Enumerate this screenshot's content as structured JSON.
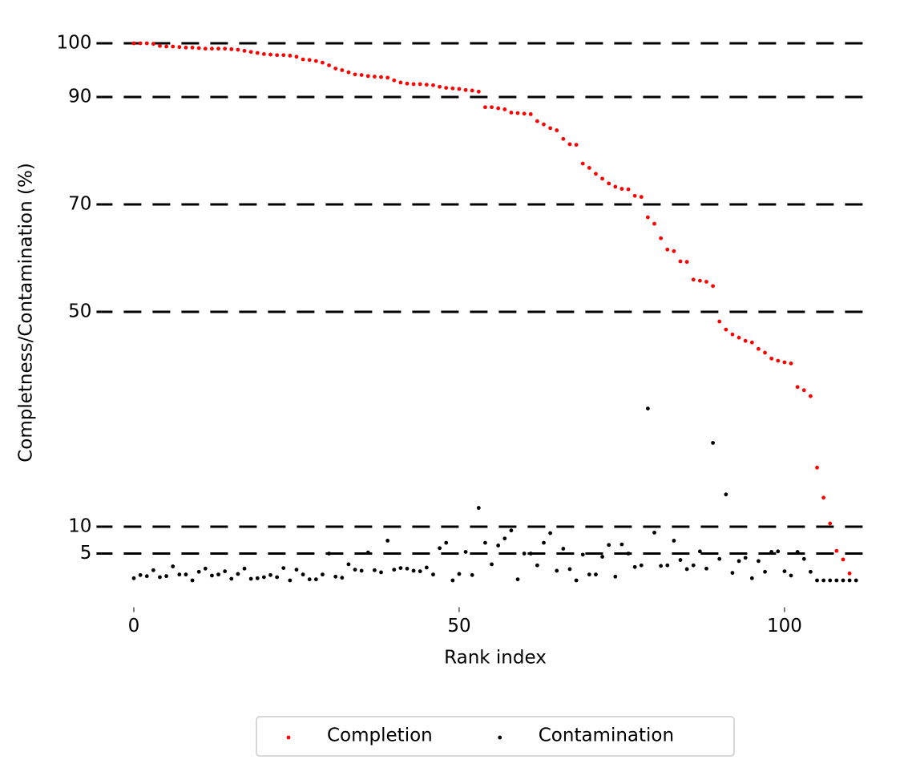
{
  "chart_data": {
    "type": "scatter",
    "xlabel": "Rank index",
    "ylabel": "Completness/Contamination (%)",
    "x": [
      0,
      1,
      2,
      3,
      4,
      5,
      6,
      7,
      8,
      9,
      10,
      11,
      12,
      13,
      14,
      15,
      16,
      17,
      18,
      19,
      20,
      21,
      22,
      23,
      24,
      25,
      26,
      27,
      28,
      29,
      30,
      31,
      32,
      33,
      34,
      35,
      36,
      37,
      38,
      39,
      40,
      41,
      42,
      43,
      44,
      45,
      46,
      47,
      48,
      49,
      50,
      51,
      52,
      53,
      54,
      55,
      56,
      57,
      58,
      59,
      60,
      61,
      62,
      63,
      64,
      65,
      66,
      67,
      68,
      69,
      70,
      71,
      72,
      73,
      74,
      75,
      76,
      77,
      78,
      79,
      80,
      81,
      82,
      83,
      84,
      85,
      86,
      87,
      88,
      89,
      90,
      91,
      92,
      93,
      94,
      95,
      96,
      97,
      98,
      99,
      100,
      101,
      102,
      103,
      104,
      105,
      106,
      107,
      108,
      109,
      110,
      111
    ],
    "series": [
      {
        "name": "Completion",
        "color": "#ff0000",
        "values": [
          100,
          100,
          100,
          99.9,
          99.5,
          99.4,
          99.4,
          99.3,
          99.2,
          99.2,
          99.1,
          99,
          99,
          99,
          99,
          98.9,
          98.8,
          98.6,
          98.4,
          98.2,
          98,
          97.9,
          97.8,
          97.8,
          97.7,
          97.5,
          97,
          96.9,
          96.7,
          96.4,
          95.9,
          95.3,
          95,
          94.6,
          94.2,
          94.1,
          93.9,
          93.8,
          93.7,
          93.6,
          93.1,
          92.7,
          92.5,
          92.4,
          92.4,
          92.3,
          92.2,
          91.9,
          91.7,
          91.6,
          91.5,
          91.3,
          91.2,
          91,
          88.1,
          88.1,
          87.9,
          87.7,
          87.1,
          87,
          86.9,
          86.8,
          85.5,
          84.9,
          84.2,
          83.8,
          82.2,
          81.2,
          81.1,
          77.6,
          76.8,
          75.7,
          74.8,
          73.9,
          73.3,
          72.9,
          72.8,
          71.6,
          71.4,
          67.6,
          66.4,
          63.7,
          61.6,
          61.3,
          59.4,
          59.3,
          56,
          55.8,
          55.6,
          54.8,
          48.2,
          46.7,
          45.8,
          45.2,
          44.6,
          44.3,
          43.1,
          42.4,
          41.3,
          40.9,
          40.6,
          40.4,
          36,
          35.4,
          34.3,
          21,
          15.4,
          10.6,
          5.5,
          3.9,
          1.3,
          null
        ]
      },
      {
        "name": "Contamination",
        "color": "#000000",
        "values": [
          0.4,
          1,
          0.8,
          1.9,
          0.6,
          0.8,
          2.6,
          1.1,
          1.1,
          0,
          1.6,
          2.2,
          0.9,
          1.1,
          1.7,
          0.3,
          1.2,
          2.2,
          0.3,
          0.4,
          0.6,
          1,
          0.6,
          2.3,
          0,
          2,
          1.1,
          0.2,
          0.2,
          1.1,
          5,
          0.7,
          0.5,
          3,
          2,
          1.8,
          5.2,
          1.9,
          1.5,
          7.4,
          2,
          2.3,
          2.2,
          1.8,
          1.7,
          2.4,
          1.1,
          6,
          7,
          0,
          1.2,
          5.3,
          1,
          13.5,
          7,
          3,
          6.5,
          7.8,
          9.3,
          0.2,
          5,
          5,
          2.8,
          7,
          8.8,
          1.8,
          5.9,
          2.1,
          0,
          4.8,
          1.1,
          1.1,
          4.4,
          6.6,
          0.7,
          6.7,
          5,
          2.5,
          2.8,
          32,
          8.9,
          2.7,
          2.8,
          7.4,
          3.8,
          2.1,
          2.8,
          5.4,
          2.2,
          25.6,
          4,
          16,
          1.4,
          3.6,
          4.2,
          0.4,
          3.6,
          1.6,
          5.3,
          5.4,
          1.7,
          0.9,
          5.3,
          4,
          1.6,
          0,
          0,
          0,
          0,
          0,
          0,
          0
        ]
      }
    ],
    "xlim": [
      -5,
      112.5
    ],
    "ylim": [
      -5,
      105
    ],
    "xticks": [
      0,
      50,
      100
    ],
    "yticks": [
      5,
      10,
      50,
      70,
      90,
      100
    ],
    "grid": true,
    "legend": "lower center"
  }
}
